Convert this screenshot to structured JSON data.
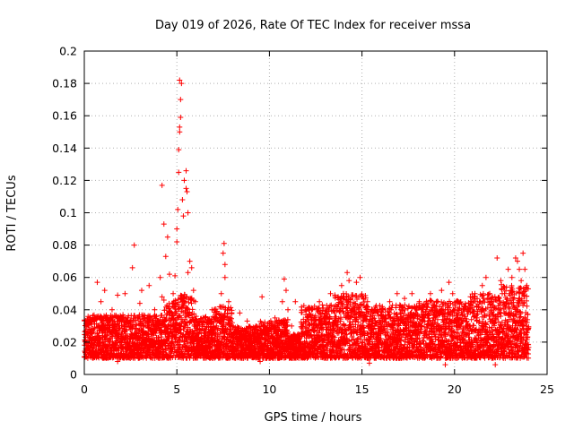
{
  "chart_data": {
    "type": "scatter",
    "title": "Day 019 of 2026, Rate Of TEC Index for receiver mssa",
    "xlabel": "GPS time / hours",
    "ylabel": "ROTI / TECUs",
    "xlim": [
      0,
      25
    ],
    "ylim": [
      0,
      0.2
    ],
    "x_ticks": [
      0,
      5,
      10,
      15,
      20,
      25
    ],
    "x_tick_labels": [
      "0",
      "5",
      "10",
      "15",
      "20",
      "25"
    ],
    "y_ticks": [
      0,
      0.02,
      0.04,
      0.06,
      0.08,
      0.1,
      0.12,
      0.14,
      0.16,
      0.18,
      0.2
    ],
    "y_tick_labels": [
      "0",
      "0.02",
      "0.04",
      "0.06",
      "0.08",
      "0.1",
      "0.12",
      "0.14",
      "0.16",
      "0.18",
      "0.2"
    ],
    "grid": true,
    "marker": "+",
    "series": [
      {
        "name": "ROTI",
        "color": "#ff0000",
        "points": [
          [
            0.1,
            0.018
          ],
          [
            0.2,
            0.025
          ],
          [
            0.3,
            0.015
          ],
          [
            0.4,
            0.031
          ],
          [
            0.5,
            0.012
          ],
          [
            0.6,
            0.022
          ],
          [
            0.7,
            0.035
          ],
          [
            0.8,
            0.02
          ],
          [
            0.9,
            0.045
          ],
          [
            1.0,
            0.018
          ],
          [
            0.7,
            0.057
          ],
          [
            1.1,
            0.052
          ],
          [
            1.3,
            0.028
          ],
          [
            1.5,
            0.04
          ],
          [
            1.6,
            0.015
          ],
          [
            1.8,
            0.049
          ],
          [
            2.0,
            0.025
          ],
          [
            2.1,
            0.035
          ],
          [
            2.2,
            0.05
          ],
          [
            2.4,
            0.018
          ],
          [
            2.5,
            0.03
          ],
          [
            2.6,
            0.066
          ],
          [
            2.7,
            0.08
          ],
          [
            2.8,
            0.022
          ],
          [
            3.0,
            0.044
          ],
          [
            3.1,
            0.052
          ],
          [
            3.2,
            0.015
          ],
          [
            3.4,
            0.03
          ],
          [
            3.5,
            0.055
          ],
          [
            3.6,
            0.025
          ],
          [
            3.8,
            0.04
          ],
          [
            3.9,
            0.02
          ],
          [
            4.0,
            0.033
          ],
          [
            4.1,
            0.06
          ],
          [
            4.2,
            0.048
          ],
          [
            4.2,
            0.117
          ],
          [
            4.3,
            0.093
          ],
          [
            4.4,
            0.073
          ],
          [
            4.5,
            0.085
          ],
          [
            4.6,
            0.062
          ],
          [
            4.7,
            0.035
          ],
          [
            4.8,
            0.05
          ],
          [
            4.9,
            0.061
          ],
          [
            5.0,
            0.09
          ],
          [
            5.0,
            0.082
          ],
          [
            5.05,
            0.102
          ],
          [
            5.1,
            0.125
          ],
          [
            5.1,
            0.139
          ],
          [
            5.15,
            0.15
          ],
          [
            5.15,
            0.153
          ],
          [
            5.2,
            0.159
          ],
          [
            5.2,
            0.17
          ],
          [
            5.15,
            0.182
          ],
          [
            5.25,
            0.18
          ],
          [
            5.3,
            0.108
          ],
          [
            5.35,
            0.098
          ],
          [
            5.4,
            0.12
          ],
          [
            5.5,
            0.126
          ],
          [
            5.5,
            0.115
          ],
          [
            5.55,
            0.113
          ],
          [
            5.6,
            0.1
          ],
          [
            5.6,
            0.063
          ],
          [
            5.7,
            0.07
          ],
          [
            5.8,
            0.066
          ],
          [
            5.9,
            0.052
          ],
          [
            6.0,
            0.045
          ],
          [
            6.1,
            0.03
          ],
          [
            6.3,
            0.022
          ],
          [
            6.5,
            0.035
          ],
          [
            6.7,
            0.018
          ],
          [
            6.9,
            0.04
          ],
          [
            7.0,
            0.028
          ],
          [
            7.2,
            0.033
          ],
          [
            7.4,
            0.05
          ],
          [
            7.5,
            0.075
          ],
          [
            7.55,
            0.081
          ],
          [
            7.6,
            0.068
          ],
          [
            7.6,
            0.06
          ],
          [
            7.8,
            0.045
          ],
          [
            8.0,
            0.03
          ],
          [
            8.2,
            0.02
          ],
          [
            8.4,
            0.038
          ],
          [
            8.6,
            0.025
          ],
          [
            8.8,
            0.033
          ],
          [
            9.0,
            0.015
          ],
          [
            9.2,
            0.028
          ],
          [
            9.4,
            0.02
          ],
          [
            9.6,
            0.048
          ],
          [
            9.7,
            0.03
          ],
          [
            9.9,
            0.018
          ],
          [
            10.1,
            0.025
          ],
          [
            10.3,
            0.035
          ],
          [
            10.5,
            0.028
          ],
          [
            10.7,
            0.045
          ],
          [
            10.8,
            0.059
          ],
          [
            10.9,
            0.052
          ],
          [
            11.0,
            0.04
          ],
          [
            11.2,
            0.03
          ],
          [
            11.4,
            0.045
          ],
          [
            11.6,
            0.022
          ],
          [
            11.9,
            0.025
          ],
          [
            12.1,
            0.035
          ],
          [
            12.3,
            0.04
          ],
          [
            12.5,
            0.03
          ],
          [
            12.7,
            0.045
          ],
          [
            12.9,
            0.028
          ],
          [
            13.1,
            0.038
          ],
          [
            13.3,
            0.05
          ],
          [
            13.5,
            0.042
          ],
          [
            13.7,
            0.033
          ],
          [
            13.9,
            0.055
          ],
          [
            14.0,
            0.048
          ],
          [
            14.2,
            0.063
          ],
          [
            14.3,
            0.058
          ],
          [
            14.5,
            0.04
          ],
          [
            14.7,
            0.057
          ],
          [
            14.9,
            0.06
          ],
          [
            15.1,
            0.035
          ],
          [
            15.3,
            0.045
          ],
          [
            15.5,
            0.03
          ],
          [
            15.7,
            0.038
          ],
          [
            15.9,
            0.025
          ],
          [
            16.1,
            0.042
          ],
          [
            16.3,
            0.035
          ],
          [
            16.5,
            0.045
          ],
          [
            16.7,
            0.03
          ],
          [
            16.9,
            0.05
          ],
          [
            17.1,
            0.04
          ],
          [
            17.3,
            0.047
          ],
          [
            17.5,
            0.035
          ],
          [
            17.7,
            0.05
          ],
          [
            17.9,
            0.03
          ],
          [
            18.1,
            0.045
          ],
          [
            18.3,
            0.033
          ],
          [
            18.5,
            0.04
          ],
          [
            18.7,
            0.05
          ],
          [
            18.9,
            0.035
          ],
          [
            19.1,
            0.045
          ],
          [
            19.3,
            0.052
          ],
          [
            19.5,
            0.04
          ],
          [
            19.7,
            0.057
          ],
          [
            19.9,
            0.05
          ],
          [
            20.1,
            0.045
          ],
          [
            20.3,
            0.035
          ],
          [
            20.5,
            0.04
          ],
          [
            20.7,
            0.03
          ],
          [
            20.9,
            0.045
          ],
          [
            21.1,
            0.05
          ],
          [
            21.3,
            0.042
          ],
          [
            21.5,
            0.055
          ],
          [
            21.7,
            0.06
          ],
          [
            21.9,
            0.05
          ],
          [
            22.1,
            0.045
          ],
          [
            22.3,
            0.072
          ],
          [
            22.5,
            0.058
          ],
          [
            22.7,
            0.05
          ],
          [
            22.9,
            0.065
          ],
          [
            23.1,
            0.06
          ],
          [
            23.3,
            0.072
          ],
          [
            23.4,
            0.07
          ],
          [
            23.5,
            0.065
          ],
          [
            23.6,
            0.058
          ],
          [
            23.7,
            0.075
          ],
          [
            23.8,
            0.065
          ],
          [
            23.9,
            0.055
          ],
          [
            19.5,
            0.006
          ],
          [
            22.2,
            0.006
          ],
          [
            1.8,
            0.008
          ],
          [
            9.5,
            0.008
          ],
          [
            15.4,
            0.007
          ]
        ]
      }
    ]
  }
}
